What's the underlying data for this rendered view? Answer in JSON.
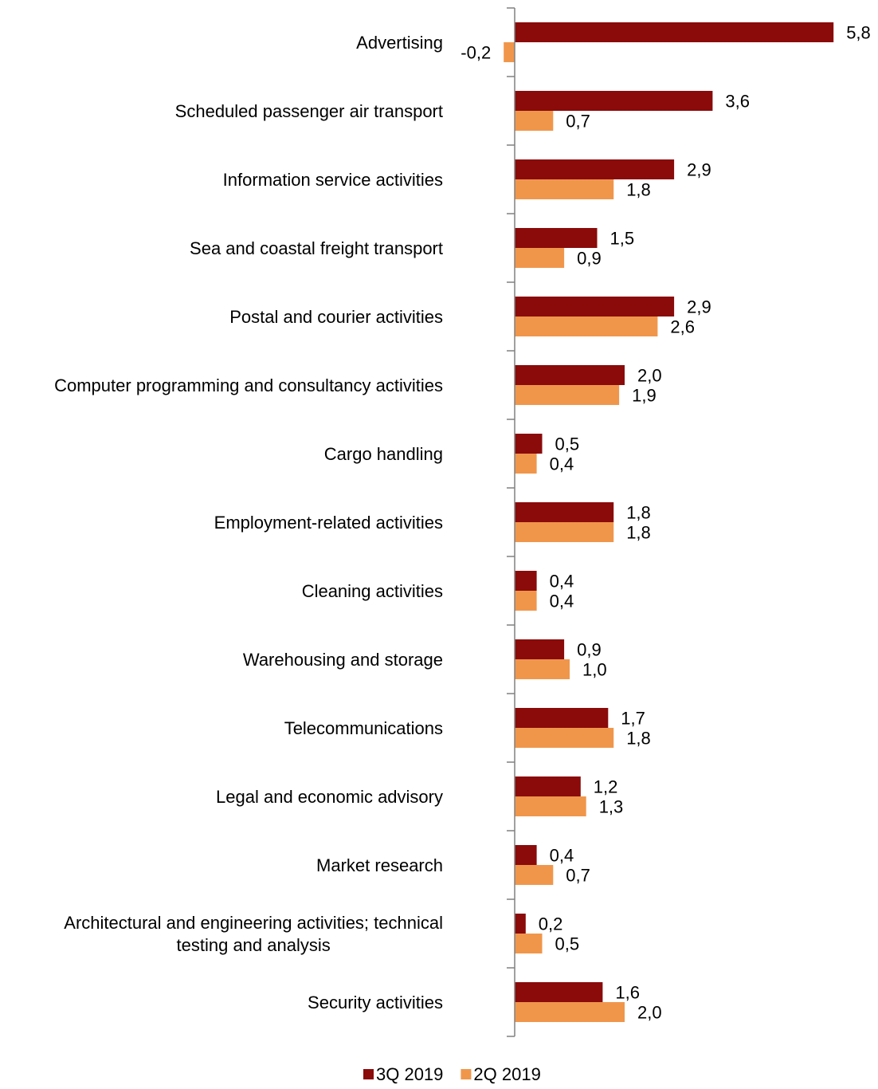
{
  "chart_data": {
    "type": "bar",
    "orientation": "horizontal",
    "categories": [
      "Advertising",
      "Scheduled passenger air transport",
      "Information service activities",
      "Sea and coastal freight transport",
      "Postal and courier activities",
      "Computer programming and consultancy activities",
      "Cargo handling",
      "Employment-related activities",
      "Cleaning activities",
      "Warehousing and storage",
      "Telecommunications",
      "Legal and economic advisory",
      "Market research",
      "Architectural and engineering activities; technical testing and analysis",
      "Security activities"
    ],
    "category_label_lines": [
      [
        "Advertising"
      ],
      [
        "Scheduled passenger air transport"
      ],
      [
        "Information service activities"
      ],
      [
        "Sea and coastal freight transport"
      ],
      [
        "Postal and courier activities"
      ],
      [
        "Computer programming and consultancy activities"
      ],
      [
        "Cargo handling"
      ],
      [
        "Employment-related activities"
      ],
      [
        "Cleaning activities"
      ],
      [
        "Warehousing and storage"
      ],
      [
        "Telecommunications"
      ],
      [
        "Legal and economic advisory"
      ],
      [
        "Market research"
      ],
      [
        "Architectural and engineering activities; technical",
        "testing and analysis"
      ],
      [
        "Security activities"
      ]
    ],
    "series": [
      {
        "name": "3Q 2019",
        "color": "#8B0A0A",
        "values": [
          5.8,
          3.6,
          2.9,
          1.5,
          2.9,
          2.0,
          0.5,
          1.8,
          0.4,
          0.9,
          1.7,
          1.2,
          0.4,
          0.2,
          1.6
        ],
        "labels": [
          "5,8",
          "3,6",
          "2,9",
          "1,5",
          "2,9",
          "2,0",
          "0,5",
          "1,8",
          "0,4",
          "0,9",
          "1,7",
          "1,2",
          "0,4",
          "0,2",
          "1,6"
        ]
      },
      {
        "name": "2Q 2019",
        "color": "#F0964B",
        "values": [
          -0.2,
          0.7,
          1.8,
          0.9,
          2.6,
          1.9,
          0.4,
          1.8,
          0.4,
          1.0,
          1.8,
          1.3,
          0.7,
          0.5,
          2.0
        ],
        "labels": [
          "-0,2",
          "0,7",
          "1,8",
          "0,9",
          "2,6",
          "1,9",
          "0,4",
          "1,8",
          "0,4",
          "1,0",
          "1,8",
          "1,3",
          "0,7",
          "0,5",
          "2,0"
        ]
      }
    ],
    "xlim": [
      -0.2,
      5.8
    ],
    "legend": "bottom-center",
    "grid": false,
    "title": "",
    "xlabel": "",
    "ylabel": ""
  }
}
